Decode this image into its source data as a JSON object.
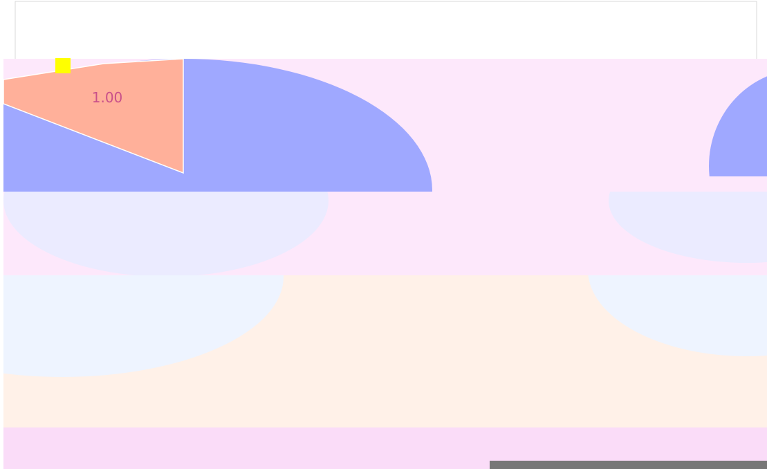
{
  "slice_label": "1.00"
}
